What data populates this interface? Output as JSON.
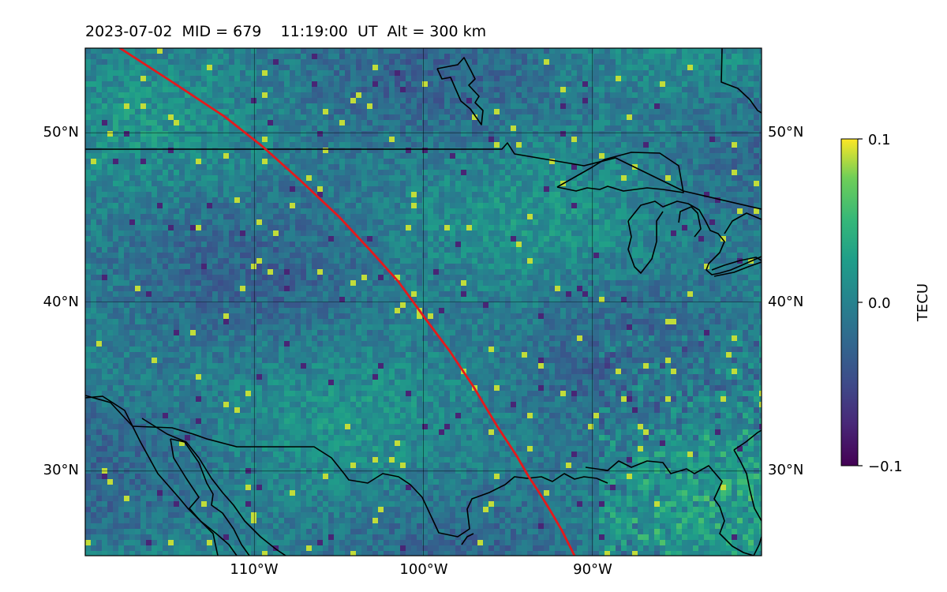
{
  "title": "2023-07-02  MID = 679    11:19:00  UT  Alt = 300 km",
  "map": {
    "lon_range": [
      -120,
      -80
    ],
    "lat_range": [
      25,
      55
    ],
    "gridlines": true,
    "lat_ticks": [
      {
        "value": 50,
        "label": "50°N"
      },
      {
        "value": 40,
        "label": "40°N"
      },
      {
        "value": 30,
        "label": "30°N"
      }
    ],
    "lon_ticks": [
      {
        "value": -110,
        "label": "110°W"
      },
      {
        "value": -100,
        "label": "100°W"
      },
      {
        "value": -90,
        "label": "90°W"
      }
    ],
    "colormap": "viridis",
    "track_color": "#e41a1c",
    "coast_color": "#000000"
  },
  "colorbar": {
    "label": "TECU",
    "ticks": [
      {
        "value": 0.1,
        "label": "0.1"
      },
      {
        "value": 0.0,
        "label": "0.0"
      },
      {
        "value": -0.1,
        "label": "−0.1"
      }
    ],
    "range": [
      -0.1,
      0.1
    ]
  }
}
